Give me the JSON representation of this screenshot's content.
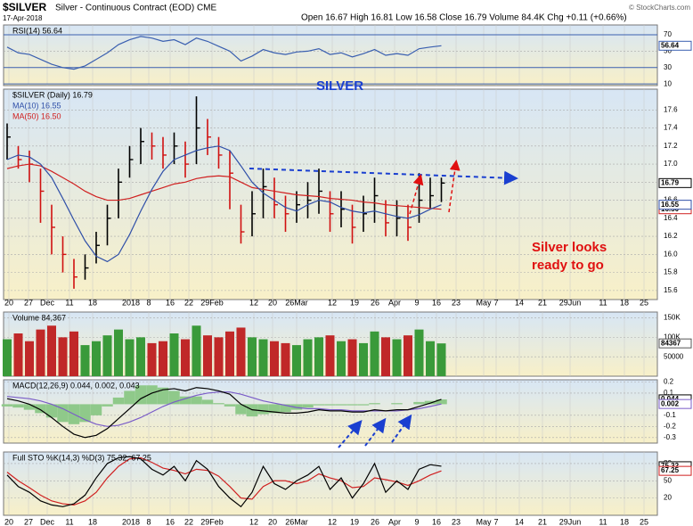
{
  "header": {
    "symbol": "$SILVER",
    "name": "Silver - Continuous Contract (EOD) CME",
    "date": "17-Apr-2018",
    "quote": "Open 16.67 High 16.81 Low 16.58 Close 16.79 Volume 84.4K Chg +0.11 (+0.66%)",
    "credit": "© StockCharts.com"
  },
  "annotations": {
    "title": "SILVER",
    "note_line1": "Silver looks",
    "note_line2": "ready to go"
  },
  "x_labels": [
    "20",
    "27",
    "Dec",
    "11",
    "18",
    "2018",
    "8",
    "16",
    "22",
    "29Feb",
    "12",
    "20",
    "26Mar",
    "12",
    "19",
    "26",
    "Apr",
    "9",
    "16",
    "23",
    "May",
    "7",
    "14",
    "21",
    "29Jun",
    "11",
    "18",
    "25"
  ],
  "chart_data": [
    {
      "type": "line",
      "ylim": [
        8,
        82
      ],
      "yticks": [
        70,
        50,
        30,
        10
      ],
      "grid": true,
      "series": [
        {
          "name": "RSI(14) 56.64",
          "color": "#3a5fb0",
          "last_label": "56.64",
          "values": [
            55,
            48,
            46,
            40,
            34,
            30,
            28,
            32,
            40,
            48,
            58,
            64,
            68,
            66,
            62,
            64,
            58,
            66,
            62,
            56,
            50,
            38,
            44,
            52,
            48,
            46,
            49,
            50,
            53,
            46,
            48,
            43,
            47,
            52,
            45,
            47,
            45,
            53,
            55,
            56.64
          ]
        }
      ]
    },
    {
      "type": "ohlc",
      "ylim": [
        15.5,
        17.83
      ],
      "grid": true,
      "yticks": [
        15.6,
        15.8,
        {
          "value": 16,
          "label": "16.0"
        },
        16.2,
        16.4,
        16.6,
        16.8,
        {
          "value": 17,
          "label": "17.0"
        },
        17.2,
        17.4,
        17.6
      ],
      "series": [
        {
          "name": "$SILVER (Daily) 16.79",
          "up_color": "#000000",
          "down_color": "#d01010",
          "color": "#000000",
          "last_label": "16.79",
          "high": [
            17.45,
            17.2,
            17.15,
            16.95,
            16.55,
            16.2,
            15.95,
            16,
            16.25,
            16.55,
            16.95,
            17.2,
            17.4,
            17.35,
            17.3,
            17.35,
            17.25,
            17.75,
            17.5,
            17.3,
            17.15,
            16.55,
            16.7,
            16.95,
            16.85,
            16.65,
            16.7,
            16.8,
            16.95,
            16.7,
            16.7,
            16.55,
            16.65,
            16.85,
            16.6,
            16.6,
            16.55,
            16.9,
            16.85,
            16.85
          ],
          "low": [
            17.05,
            16.95,
            16.8,
            16.35,
            16,
            15.8,
            15.62,
            15.72,
            15.9,
            16.1,
            16.4,
            16.85,
            17,
            17.05,
            16.95,
            17,
            16.85,
            17,
            17.1,
            16.95,
            16.5,
            16.12,
            16.2,
            16.4,
            16.4,
            16.25,
            16.35,
            16.4,
            16.45,
            16.25,
            16.3,
            16.12,
            16.25,
            16.35,
            16.2,
            16.2,
            16.15,
            16.35,
            16.5,
            16.58
          ],
          "values": [
            17.3,
            17.05,
            17,
            16.7,
            16.3,
            16,
            15.75,
            15.85,
            16.1,
            16.4,
            16.8,
            17.05,
            17.25,
            17.2,
            17.1,
            17.2,
            17,
            17.4,
            17.3,
            17.1,
            16.9,
            16.25,
            16.45,
            16.75,
            16.55,
            16.45,
            16.55,
            16.6,
            16.7,
            16.45,
            16.5,
            16.3,
            16.45,
            16.65,
            16.35,
            16.4,
            16.3,
            16.6,
            16.65,
            16.79
          ]
        },
        {
          "name": "MA(10) 16.55",
          "color": "#2f4fa8",
          "last_label": "16.55",
          "values": [
            17.05,
            17.1,
            17.08,
            17,
            16.85,
            16.62,
            16.38,
            16.15,
            15.98,
            15.92,
            16,
            16.22,
            16.48,
            16.72,
            16.92,
            17.05,
            17.1,
            17.15,
            17.18,
            17.2,
            17.15,
            16.98,
            16.8,
            16.68,
            16.6,
            16.52,
            16.48,
            16.55,
            16.6,
            16.58,
            16.52,
            16.48,
            16.46,
            16.48,
            16.45,
            16.42,
            16.4,
            16.44,
            16.5,
            16.55
          ]
        },
        {
          "name": "MA(50) 16.50",
          "color": "#d02020",
          "last_label": "16.50",
          "values": [
            16.95,
            16.98,
            17,
            16.98,
            16.92,
            16.85,
            16.78,
            16.7,
            16.64,
            16.6,
            16.6,
            16.62,
            16.66,
            16.7,
            16.74,
            16.78,
            16.8,
            16.84,
            16.86,
            16.87,
            16.86,
            16.8,
            16.74,
            16.72,
            16.7,
            16.68,
            16.66,
            16.65,
            16.64,
            16.62,
            16.61,
            16.6,
            16.58,
            16.57,
            16.55,
            16.54,
            16.53,
            16.52,
            16.51,
            16.5
          ]
        }
      ]
    },
    {
      "type": "volume",
      "ylim": [
        0,
        165000
      ],
      "grid": true,
      "yticks": [
        {
          "value": 150000,
          "label": "150K"
        },
        {
          "value": 100000,
          "label": "100K"
        },
        50000
      ],
      "series": [
        {
          "name": "Volume 84,367",
          "up_color": "#3a9a3a",
          "down_color": "#c02828",
          "color": "#ffffff",
          "last_label": "84367",
          "values": [
            95000,
            110000,
            90000,
            120000,
            130000,
            100000,
            115000,
            80000,
            90000,
            105000,
            120000,
            95000,
            100000,
            85000,
            90000,
            110000,
            95000,
            130000,
            105000,
            100000,
            115000,
            125000,
            100000,
            95000,
            90000,
            85000,
            80000,
            95000,
            100000,
            105000,
            90000,
            95000,
            85000,
            115000,
            100000,
            95000,
            105000,
            120000,
            90000,
            84367
          ]
        }
      ]
    },
    {
      "type": "macd",
      "title": "MACD(12,26,9) 0.044, 0.002, 0.043",
      "ylim": [
        -0.35,
        0.22
      ],
      "yticks": [
        0.2,
        0.1,
        -0.1,
        -0.2,
        -0.3
      ],
      "grid": true,
      "series": [
        {
          "name": "MACD",
          "color": "#000000",
          "last_label": "0.044",
          "values": [
            0.05,
            0.03,
            0,
            -0.05,
            -0.12,
            -0.2,
            -0.27,
            -0.3,
            -0.28,
            -0.22,
            -0.13,
            -0.04,
            0.05,
            0.1,
            0.13,
            0.14,
            0.12,
            0.15,
            0.14,
            0.12,
            0.09,
            0,
            -0.05,
            -0.06,
            -0.07,
            -0.08,
            -0.08,
            -0.07,
            -0.05,
            -0.06,
            -0.06,
            -0.07,
            -0.07,
            -0.05,
            -0.06,
            -0.05,
            -0.05,
            -0.02,
            0.01,
            0.044
          ]
        },
        {
          "name": "Signal",
          "color": "#7a5cc8",
          "last_label": "0.002",
          "values": [
            0.07,
            0.06,
            0.05,
            0.03,
            0,
            -0.04,
            -0.09,
            -0.14,
            -0.18,
            -0.2,
            -0.19,
            -0.16,
            -0.12,
            -0.07,
            -0.02,
            0.02,
            0.05,
            0.08,
            0.1,
            0.11,
            0.11,
            0.09,
            0.06,
            0.03,
            0.01,
            -0.01,
            -0.03,
            -0.04,
            -0.04,
            -0.05,
            -0.05,
            -0.06,
            -0.06,
            -0.06,
            -0.06,
            -0.06,
            -0.05,
            -0.04,
            -0.02,
            0.002
          ]
        },
        {
          "name": "Histogram",
          "color": "#8fc98a",
          "values": [
            -0.02,
            -0.03,
            -0.05,
            -0.08,
            -0.12,
            -0.16,
            -0.18,
            -0.16,
            -0.1,
            -0.02,
            0.06,
            0.12,
            0.17,
            0.17,
            0.15,
            0.12,
            0.07,
            0.07,
            0.04,
            0.01,
            -0.02,
            -0.09,
            -0.11,
            -0.09,
            -0.08,
            -0.07,
            -0.05,
            -0.03,
            -0.01,
            -0.01,
            -0.01,
            -0.01,
            -0.01,
            0.01,
            0,
            0.01,
            0,
            0.02,
            0.03,
            0.043
          ]
        }
      ]
    },
    {
      "type": "sto",
      "title": "Full STO %K(14,3) %D(3) 75.32, 67.25",
      "ylim": [
        -10,
        100
      ],
      "yticks": [
        80,
        50,
        20
      ],
      "grid": true,
      "series": [
        {
          "name": "%K",
          "color": "#000000",
          "last_label": "75.32",
          "values": [
            60,
            40,
            30,
            15,
            8,
            5,
            10,
            25,
            55,
            80,
            90,
            92,
            88,
            70,
            60,
            75,
            50,
            85,
            70,
            40,
            20,
            5,
            30,
            75,
            45,
            35,
            50,
            60,
            75,
            35,
            55,
            20,
            45,
            80,
            30,
            50,
            35,
            70,
            78,
            75.32
          ]
        },
        {
          "name": "%D",
          "color": "#d02020",
          "last_label": "67.25",
          "values": [
            65,
            50,
            38,
            25,
            15,
            10,
            8,
            15,
            30,
            55,
            75,
            88,
            90,
            82,
            72,
            68,
            62,
            70,
            68,
            58,
            40,
            20,
            18,
            40,
            50,
            50,
            45,
            50,
            62,
            55,
            50,
            38,
            40,
            55,
            52,
            48,
            42,
            50,
            60,
            67.25
          ]
        }
      ]
    }
  ]
}
